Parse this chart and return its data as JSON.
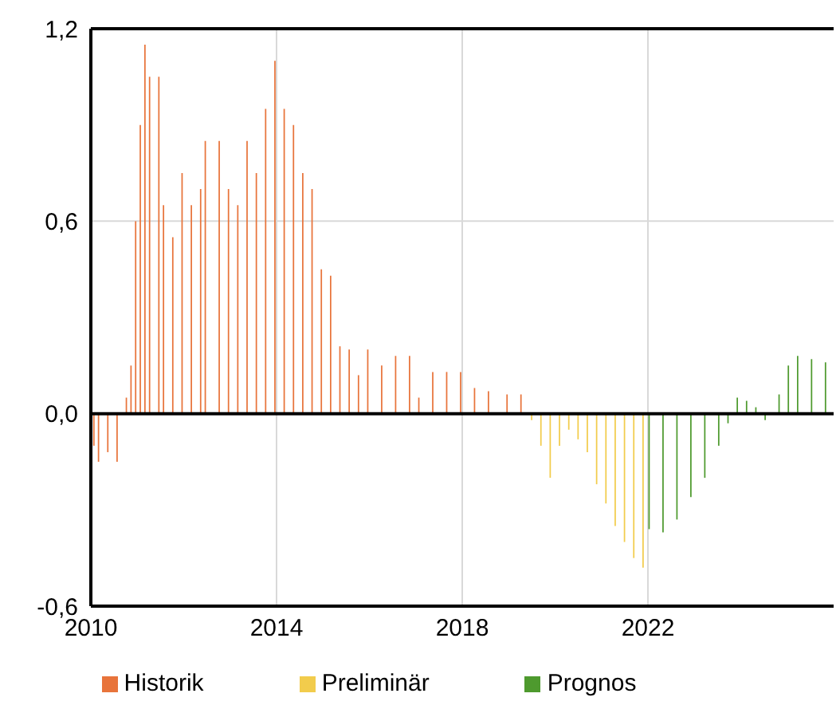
{
  "chart_data": {
    "type": "bar",
    "xlim": [
      2010,
      2026
    ],
    "xticks": [
      2010,
      2014,
      2018,
      2022
    ],
    "ylim": [
      -0.6,
      1.2
    ],
    "yticks": [
      {
        "value": -0.6,
        "label": "-0,6"
      },
      {
        "value": 0,
        "label": "0,0"
      },
      {
        "value": 0.6,
        "label": "0,6"
      },
      {
        "value": 1.2,
        "label": "1,2"
      }
    ],
    "grid": true,
    "legend": "bottom",
    "series": [
      {
        "name": "Historik",
        "color": "#e8743b",
        "x": [
          2010.1,
          2010.2,
          2010.4,
          2010.6,
          2010.8,
          2010.9,
          2011.0,
          2011.1,
          2011.2,
          2011.3,
          2011.5,
          2011.6,
          2011.8,
          2012.0,
          2012.2,
          2012.4,
          2012.5,
          2012.8,
          2013.0,
          2013.2,
          2013.4,
          2013.6,
          2013.8,
          2014.0,
          2014.2,
          2014.4,
          2014.6,
          2014.8,
          2015.0,
          2015.2,
          2015.4,
          2015.6,
          2015.8,
          2016.0,
          2016.3,
          2016.6,
          2016.9,
          2017.1,
          2017.4,
          2017.7,
          2018.0,
          2018.3,
          2018.6,
          2019.0,
          2019.3
        ],
        "values": [
          -0.1,
          -0.15,
          -0.12,
          -0.15,
          0.05,
          0.15,
          0.6,
          0.9,
          1.15,
          1.05,
          1.05,
          0.65,
          0.55,
          0.75,
          0.65,
          0.7,
          0.85,
          0.85,
          0.7,
          0.65,
          0.85,
          0.75,
          0.95,
          1.1,
          0.95,
          0.9,
          0.75,
          0.7,
          0.45,
          0.43,
          0.21,
          0.2,
          0.12,
          0.2,
          0.15,
          0.18,
          0.18,
          0.05,
          0.13,
          0.13,
          0.13,
          0.08,
          0.07,
          0.06,
          0.06
        ]
      },
      {
        "name": "Preliminär",
        "color": "#f2cc4c",
        "x": [
          2019.5,
          2019.7,
          2019.9,
          2020.1,
          2020.3,
          2020.5,
          2020.7,
          2020.9,
          2021.1,
          2021.3,
          2021.5,
          2021.7,
          2021.9
        ],
        "values": [
          -0.02,
          -0.1,
          -0.2,
          -0.1,
          -0.05,
          -0.08,
          -0.12,
          -0.22,
          -0.28,
          -0.35,
          -0.4,
          -0.45,
          -0.48
        ]
      },
      {
        "name": "Prognos",
        "color": "#4e9a2e",
        "x": [
          2022.0,
          2022.3,
          2022.6,
          2022.9,
          2023.2,
          2023.5,
          2023.7,
          2023.9,
          2024.1,
          2024.3,
          2024.5,
          2024.8,
          2025.0,
          2025.2,
          2025.5,
          2025.8
        ],
        "values": [
          -0.36,
          -0.37,
          -0.33,
          -0.26,
          -0.2,
          -0.1,
          -0.03,
          0.05,
          0.04,
          0.02,
          -0.02,
          0.06,
          0.15,
          0.18,
          0.17,
          0.16
        ]
      }
    ]
  }
}
